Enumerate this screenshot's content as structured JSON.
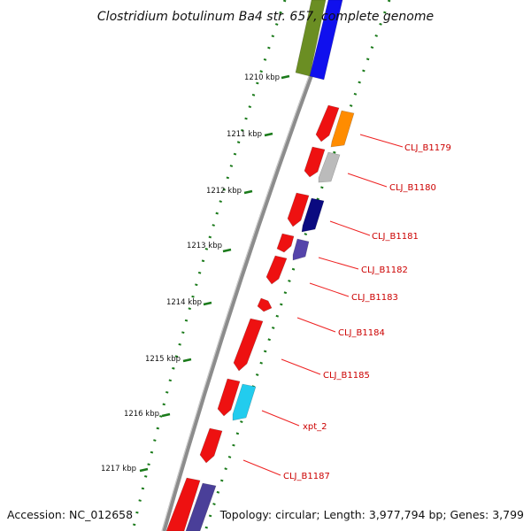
{
  "title": "Clostridium botulinum Ba4 str. 657, complete genome",
  "footer": {
    "accession": "Accession: NC_012658",
    "topology": "Topology: circular; Length: 3,977,794 bp; Genes: 3,799"
  },
  "colors": {
    "forward_strand": "#ee1111",
    "backbone": "#8c8c8c",
    "gc_dots": "#1a7a1a",
    "label": "#cc0000",
    "leader": "#ee2222"
  },
  "ticks": [
    {
      "label": "1210 kbp"
    },
    {
      "label": "1211 kbp"
    },
    {
      "label": "1212 kbp"
    },
    {
      "label": "1213 kbp"
    },
    {
      "label": "1214 kbp"
    },
    {
      "label": "1215 kbp"
    },
    {
      "label": "1216 kbp"
    },
    {
      "label": "1217 kbp"
    }
  ],
  "gene_labels": [
    {
      "text": "CLJ_B1179"
    },
    {
      "text": "CLJ_B1180"
    },
    {
      "text": "CLJ_B1181"
    },
    {
      "text": "CLJ_B1182"
    },
    {
      "text": "CLJ_B1183"
    },
    {
      "text": "CLJ_B1184"
    },
    {
      "text": "CLJ_B1185"
    },
    {
      "text": "xpt_2"
    },
    {
      "text": "CLJ_B1187"
    }
  ],
  "features": [
    {
      "color": "#6b8e23"
    },
    {
      "color": "#1010ee"
    },
    {
      "color": "#ee1111"
    },
    {
      "color": "#ff8c00"
    },
    {
      "color": "#ee1111"
    },
    {
      "color": "#bbbbbb"
    },
    {
      "color": "#ee1111"
    },
    {
      "color": "#0a0a80"
    },
    {
      "color": "#ee1111"
    },
    {
      "color": "#5544aa"
    },
    {
      "color": "#ee1111"
    },
    {
      "color": "#ee1111"
    },
    {
      "color": "#ee1111"
    },
    {
      "color": "#ee1111"
    },
    {
      "color": "#22ccee"
    },
    {
      "color": "#ee1111"
    },
    {
      "color": "#ee1111"
    },
    {
      "color": "#4a3f99"
    }
  ]
}
